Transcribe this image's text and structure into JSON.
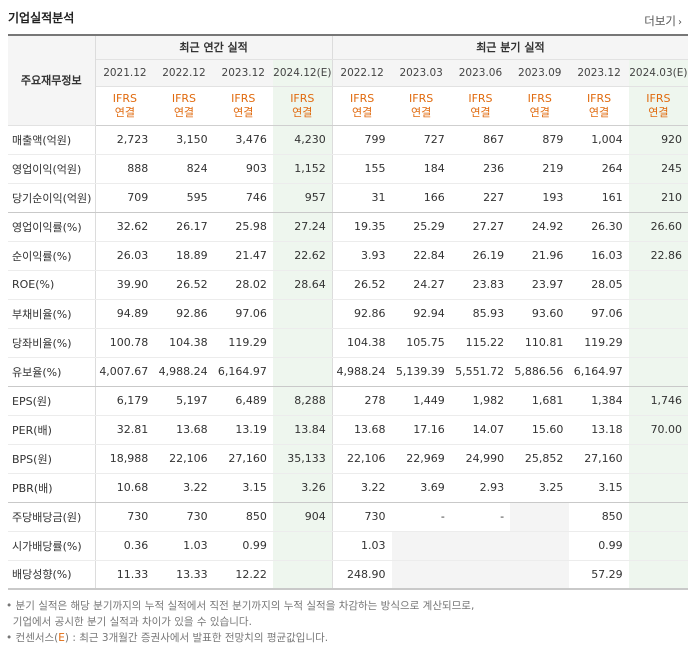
{
  "title": "기업실적분석",
  "more_label": "더보기",
  "more_icon": "chevron-right-icon",
  "label_header": "주요재무정보",
  "groups": [
    "최근 연간 실적",
    "최근 분기 실적"
  ],
  "dates": [
    "2021.12",
    "2022.12",
    "2023.12",
    "2024.12(E)",
    "2022.12",
    "2023.03",
    "2023.06",
    "2023.09",
    "2023.12",
    "2024.03(E)"
  ],
  "ifrs": [
    "IFRS",
    "연결"
  ],
  "rows": [
    {
      "label": "매출액(억원)",
      "values": [
        "2,723",
        "3,150",
        "3,476",
        "4,230",
        "799",
        "727",
        "867",
        "879",
        "1,004",
        "920"
      ]
    },
    {
      "label": "영업이익(억원)",
      "values": [
        "888",
        "824",
        "903",
        "1,152",
        "155",
        "184",
        "236",
        "219",
        "264",
        "245"
      ]
    },
    {
      "label": "당기순이익(억원)",
      "values": [
        "709",
        "595",
        "746",
        "957",
        "31",
        "166",
        "227",
        "193",
        "161",
        "210"
      ]
    },
    {
      "label": "영업이익률(%)",
      "values": [
        "32.62",
        "26.17",
        "25.98",
        "27.24",
        "19.35",
        "25.29",
        "27.27",
        "24.92",
        "26.30",
        "26.60"
      ]
    },
    {
      "label": "순이익률(%)",
      "values": [
        "26.03",
        "18.89",
        "21.47",
        "22.62",
        "3.93",
        "22.84",
        "26.19",
        "21.96",
        "16.03",
        "22.86"
      ]
    },
    {
      "label": "ROE(%)",
      "values": [
        "39.90",
        "26.52",
        "28.02",
        "28.64",
        "26.52",
        "24.27",
        "23.83",
        "23.97",
        "28.05",
        ""
      ]
    },
    {
      "label": "부채비율(%)",
      "values": [
        "94.89",
        "92.86",
        "97.06",
        "",
        "92.86",
        "92.94",
        "85.93",
        "93.60",
        "97.06",
        ""
      ]
    },
    {
      "label": "당좌비율(%)",
      "values": [
        "100.78",
        "104.38",
        "119.29",
        "",
        "104.38",
        "105.75",
        "115.22",
        "110.81",
        "119.29",
        ""
      ]
    },
    {
      "label": "유보율(%)",
      "values": [
        "4,007.67",
        "4,988.24",
        "6,164.97",
        "",
        "4,988.24",
        "5,139.39",
        "5,551.72",
        "5,886.56",
        "6,164.97",
        ""
      ]
    },
    {
      "label": "EPS(원)",
      "values": [
        "6,179",
        "5,197",
        "6,489",
        "8,288",
        "278",
        "1,449",
        "1,982",
        "1,681",
        "1,384",
        "1,746"
      ]
    },
    {
      "label": "PER(배)",
      "values": [
        "32.81",
        "13.68",
        "13.19",
        "13.84",
        "13.68",
        "17.16",
        "14.07",
        "15.60",
        "13.18",
        "70.00"
      ]
    },
    {
      "label": "BPS(원)",
      "values": [
        "18,988",
        "22,106",
        "27,160",
        "35,133",
        "22,106",
        "22,969",
        "24,990",
        "25,852",
        "27,160",
        ""
      ]
    },
    {
      "label": "PBR(배)",
      "values": [
        "10.68",
        "3.22",
        "3.15",
        "3.26",
        "3.22",
        "3.69",
        "2.93",
        "3.25",
        "3.15",
        ""
      ]
    },
    {
      "label": "주당배당금(원)",
      "values": [
        "730",
        "730",
        "850",
        "904",
        "730",
        "-",
        "-",
        "",
        "850",
        ""
      ]
    },
    {
      "label": "시가배당률(%)",
      "values": [
        "0.36",
        "1.03",
        "0.99",
        "",
        "1.03",
        "",
        "",
        "",
        "0.99",
        ""
      ]
    },
    {
      "label": "배당성향(%)",
      "values": [
        "11.33",
        "13.33",
        "12.22",
        "",
        "248.90",
        "",
        "",
        "",
        "57.29",
        ""
      ]
    }
  ],
  "notes": {
    "line1": "분기 실적은 해당 분기까지의 누적 실적에서 직전 분기까지의 누적 실적을 차감하는 방식으로 계산되므로,",
    "line2": "기업에서 공시한 분기 실적과 차이가 있을 수 있습니다.",
    "line3_prefix": "컨센서스(",
    "line3_e": "E",
    "line3_suffix": ") : 최근 3개월간 증권사에서 발표한 전망치의 평균값입니다."
  }
}
